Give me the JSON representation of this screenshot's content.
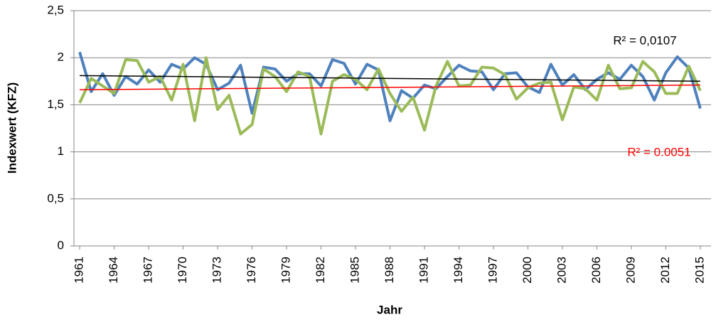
{
  "chart_data": {
    "type": "line",
    "x_label": "Jahr",
    "y_label": "Indexwert (KFZ)",
    "x": [
      1961,
      1962,
      1963,
      1964,
      1965,
      1966,
      1967,
      1968,
      1969,
      1970,
      1971,
      1972,
      1973,
      1974,
      1975,
      1976,
      1977,
      1978,
      1979,
      1980,
      1981,
      1982,
      1983,
      1984,
      1985,
      1986,
      1987,
      1988,
      1989,
      1990,
      1991,
      1992,
      1993,
      1994,
      1995,
      1996,
      1997,
      1998,
      1999,
      2000,
      2001,
      2002,
      2003,
      2004,
      2005,
      2006,
      2007,
      2008,
      2009,
      2010,
      2011,
      2012,
      2013,
      2014,
      2015
    ],
    "series": [
      {
        "color": "#4f81bd",
        "values": [
          2.06,
          1.64,
          1.83,
          1.6,
          1.8,
          1.72,
          1.87,
          1.74,
          1.93,
          1.88,
          2.0,
          1.93,
          1.66,
          1.73,
          1.92,
          1.41,
          1.9,
          1.88,
          1.75,
          1.83,
          1.83,
          1.7,
          1.98,
          1.94,
          1.72,
          1.93,
          1.87,
          1.33,
          1.65,
          1.57,
          1.71,
          1.67,
          1.8,
          1.92,
          1.86,
          1.85,
          1.66,
          1.83,
          1.84,
          1.69,
          1.63,
          1.93,
          1.71,
          1.82,
          1.66,
          1.77,
          1.84,
          1.77,
          1.92,
          1.8,
          1.55,
          1.84,
          2.01,
          1.89,
          1.46
        ]
      },
      {
        "color": "#9bbb59",
        "values": [
          1.52,
          1.78,
          1.7,
          1.62,
          1.98,
          1.97,
          1.74,
          1.8,
          1.55,
          1.93,
          1.33,
          2.0,
          1.45,
          1.6,
          1.19,
          1.29,
          1.88,
          1.8,
          1.64,
          1.85,
          1.8,
          1.19,
          1.75,
          1.82,
          1.77,
          1.66,
          1.88,
          1.62,
          1.43,
          1.58,
          1.23,
          1.7,
          1.96,
          1.7,
          1.71,
          1.9,
          1.89,
          1.82,
          1.56,
          1.68,
          1.73,
          1.74,
          1.34,
          1.69,
          1.67,
          1.55,
          1.92,
          1.67,
          1.68,
          1.96,
          1.85,
          1.62,
          1.62,
          1.91,
          1.65
        ]
      }
    ],
    "trendlines": [
      {
        "color": "#000000",
        "x": [
          1961,
          2015
        ],
        "values": [
          1.81,
          1.75
        ],
        "label": "R² = 0,0107"
      },
      {
        "color": "#ff0000",
        "x": [
          1961,
          2015
        ],
        "values": [
          1.66,
          1.71
        ],
        "label": "R² = 0.0051"
      }
    ],
    "xlim": [
      1960.5,
      2015.5
    ],
    "xticks": [
      1961,
      1964,
      1967,
      1970,
      1973,
      1976,
      1979,
      1982,
      1985,
      1988,
      1991,
      1994,
      1997,
      2000,
      2003,
      2006,
      2009,
      2012,
      2015
    ],
    "ylim": [
      0,
      2.5
    ],
    "yticks": [
      0,
      {
        "value": 0.5,
        "label": "0,5"
      },
      1,
      {
        "value": 1.5,
        "label": "1,5"
      },
      2,
      {
        "value": 2.5,
        "label": "2,5"
      }
    ],
    "grid": true
  }
}
